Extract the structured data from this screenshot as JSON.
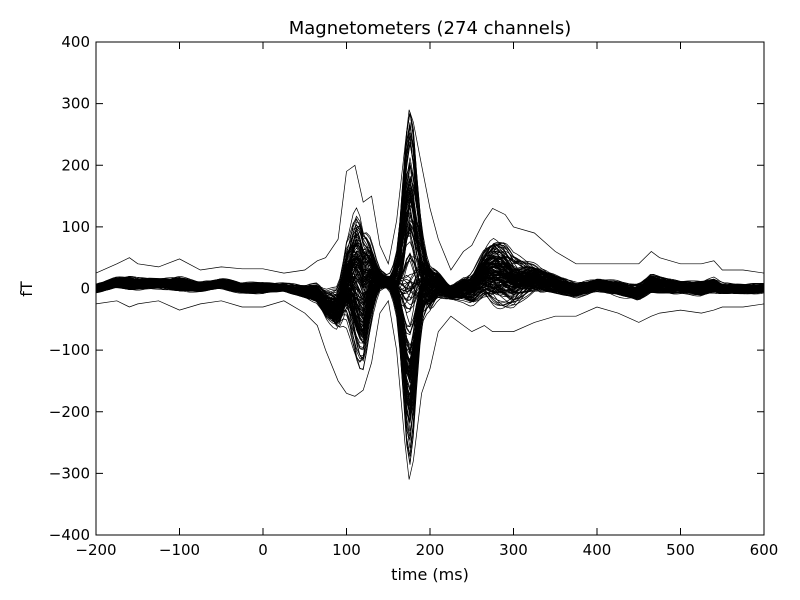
{
  "chart_data": {
    "type": "line",
    "title": "Magnetometers (274 channels)",
    "xlabel": "time (ms)",
    "ylabel": "fT",
    "xlim": [
      -200,
      600
    ],
    "ylim": [
      -400,
      400
    ],
    "xticks": [
      -200,
      -100,
      0,
      100,
      200,
      300,
      400,
      500,
      600
    ],
    "yticks": [
      -400,
      -300,
      -200,
      -100,
      0,
      100,
      200,
      300,
      400
    ],
    "xtick_labels": [
      "−200",
      "−100",
      "0",
      "100",
      "200",
      "300",
      "400",
      "500",
      "600"
    ],
    "ytick_labels": [
      "−400",
      "−300",
      "−200",
      "−100",
      "0",
      "100",
      "200",
      "300",
      "400"
    ],
    "grid": false,
    "legend": false,
    "series_color": "#000000",
    "channel_count": 274,
    "envelope": {
      "x": [
        -200,
        -175,
        -160,
        -150,
        -125,
        -100,
        -75,
        -50,
        -25,
        0,
        25,
        50,
        65,
        75,
        90,
        100,
        110,
        120,
        130,
        140,
        150,
        160,
        170,
        175,
        180,
        190,
        200,
        210,
        225,
        240,
        250,
        265,
        275,
        290,
        300,
        325,
        350,
        375,
        400,
        425,
        450,
        465,
        475,
        500,
        525,
        540,
        550,
        575,
        600
      ],
      "upper": [
        25,
        40,
        50,
        40,
        35,
        48,
        30,
        35,
        32,
        32,
        25,
        30,
        45,
        50,
        80,
        190,
        200,
        140,
        150,
        70,
        40,
        110,
        230,
        290,
        270,
        200,
        130,
        80,
        30,
        60,
        70,
        110,
        130,
        120,
        100,
        90,
        60,
        40,
        40,
        40,
        40,
        60,
        50,
        40,
        40,
        45,
        30,
        30,
        25
      ],
      "lower": [
        -25,
        -20,
        -30,
        -25,
        -20,
        -35,
        -25,
        -20,
        -30,
        -30,
        -20,
        -40,
        -60,
        -100,
        -150,
        -170,
        -175,
        -165,
        -120,
        -40,
        -20,
        -100,
        -250,
        -310,
        -280,
        -170,
        -130,
        -70,
        -45,
        -60,
        -70,
        -60,
        -70,
        -70,
        -70,
        -55,
        -45,
        -45,
        -30,
        -40,
        -55,
        -45,
        -40,
        -35,
        -40,
        -35,
        -30,
        -30,
        -25
      ]
    }
  }
}
